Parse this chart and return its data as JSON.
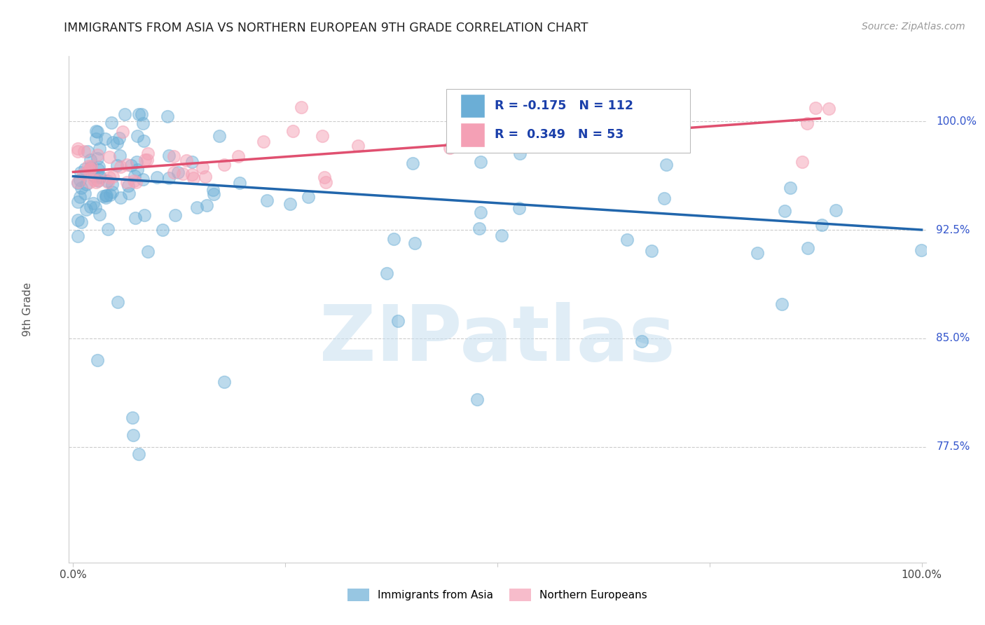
{
  "title": "IMMIGRANTS FROM ASIA VS NORTHERN EUROPEAN 9TH GRADE CORRELATION CHART",
  "source": "Source: ZipAtlas.com",
  "ylabel": "9th Grade",
  "watermark": "ZIPatlas",
  "R_asia": -0.175,
  "N_asia": 112,
  "R_northern": 0.349,
  "N_northern": 53,
  "y_ticks": [
    0.775,
    0.85,
    0.925,
    1.0
  ],
  "y_tick_labels": [
    "77.5%",
    "85.0%",
    "92.5%",
    "100.0%"
  ],
  "x_range": [
    0.0,
    1.0
  ],
  "y_range": [
    0.695,
    1.045
  ],
  "asia_color": "#6baed6",
  "northern_color": "#f4a0b5",
  "asia_line_color": "#2166ac",
  "northern_line_color": "#e05070",
  "legend_asia_label": "Immigrants from Asia",
  "legend_northern_label": "Northern Europeans",
  "asia_line_x0": 0.0,
  "asia_line_y0": 0.962,
  "asia_line_x1": 1.0,
  "asia_line_y1": 0.925,
  "north_line_x0": 0.0,
  "north_line_y0": 0.965,
  "north_line_x1": 0.88,
  "north_line_y1": 1.002
}
